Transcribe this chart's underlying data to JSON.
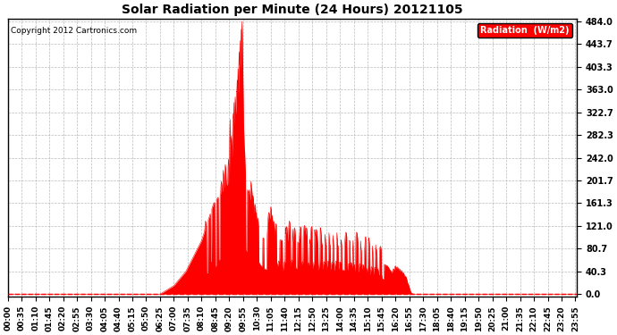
{
  "title": "Solar Radiation per Minute (24 Hours) 20121105",
  "copyright_text": "Copyright 2012 Cartronics.com",
  "legend_label": "Radiation  (W/m2)",
  "background_color": "#ffffff",
  "plot_bg_color": "#ffffff",
  "grid_color": "#aaaaaa",
  "fill_color": "#ff0000",
  "line_color": "#ff0000",
  "legend_bg": "#ff0000",
  "legend_text_color": "#ffffff",
  "yticks": [
    0.0,
    40.3,
    80.7,
    121.0,
    161.3,
    201.7,
    242.0,
    282.3,
    322.7,
    363.0,
    403.3,
    443.7,
    484.0
  ],
  "ymax": 484.0,
  "ymin": 0.0,
  "total_minutes": 1440,
  "x_tick_interval": 35,
  "x_tick_labels": [
    "00:00",
    "00:35",
    "01:10",
    "01:45",
    "02:20",
    "02:55",
    "03:30",
    "04:05",
    "04:40",
    "05:15",
    "05:50",
    "06:25",
    "07:00",
    "07:35",
    "08:10",
    "08:45",
    "09:20",
    "09:55",
    "10:30",
    "11:05",
    "11:40",
    "12:15",
    "12:50",
    "13:25",
    "14:00",
    "14:35",
    "15:10",
    "15:45",
    "16:20",
    "16:55",
    "17:30",
    "18:05",
    "18:40",
    "19:15",
    "19:50",
    "20:25",
    "21:00",
    "21:35",
    "22:10",
    "22:45",
    "23:20",
    "23:55"
  ]
}
